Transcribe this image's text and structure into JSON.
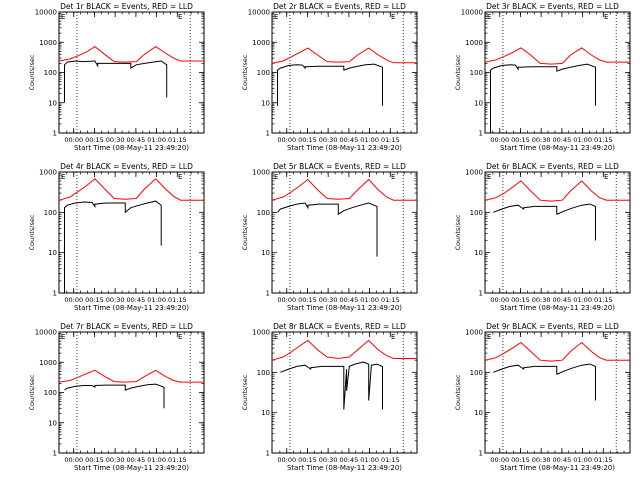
{
  "chart_data": [
    {
      "type": "line",
      "title": "Det 1r BLACK = Events, RED = LLD",
      "xlabel": "Start Time (08-May-11 23:49:20)",
      "ylabel": "Counts/sec",
      "ylog": true,
      "ylim": [
        1,
        10000
      ],
      "y_ticks": [
        "1",
        "10",
        "100",
        "1000",
        "10000"
      ],
      "x_ticks": [
        "00:00",
        "00:15",
        "00:30",
        "00:45",
        "01:00",
        "01:15"
      ],
      "x_tick_minutes": [
        10.67,
        25.67,
        40.67,
        55.67,
        70.67,
        85.67
      ],
      "xlim": [
        0,
        105
      ],
      "corner_marks": [
        "E",
        "E"
      ],
      "vlines": [
        13,
        95
      ],
      "series": [
        {
          "color": "#ff0000",
          "x": [
            0,
            8,
            14,
            20,
            26,
            33,
            40,
            48,
            56,
            62,
            70,
            77,
            83,
            88,
            95,
            100,
            105
          ],
          "y": [
            240,
            280,
            360,
            480,
            720,
            400,
            230,
            220,
            230,
            400,
            720,
            440,
            300,
            240,
            240,
            240,
            240
          ]
        },
        {
          "color": "#000000",
          "x": [
            4,
            4,
            6,
            12,
            18,
            26,
            28,
            28,
            36,
            46,
            52,
            52,
            56,
            62,
            68,
            74,
            78,
            78,
            78
          ],
          "y": [
            10,
            180,
            220,
            240,
            230,
            240,
            165,
            200,
            200,
            200,
            200,
            140,
            180,
            200,
            220,
            240,
            180,
            30,
            15
          ]
        }
      ]
    },
    {
      "type": "line",
      "title": "Det 2r BLACK = Events, RED = LLD",
      "xlabel": "Start Time (08-May-11 23:49:20)",
      "ylabel": "Counts/sec",
      "ylog": true,
      "ylim": [
        1,
        10000
      ],
      "y_ticks": [
        "1",
        "10",
        "100",
        "1000",
        "10000"
      ],
      "x_ticks": [
        "00:00",
        "00:15",
        "00:30",
        "00:45",
        "01:00",
        "01:15"
      ],
      "x_tick_minutes": [
        10.67,
        25.67,
        40.67,
        55.67,
        70.67,
        85.67
      ],
      "xlim": [
        0,
        105
      ],
      "corner_marks": [
        "E",
        "E"
      ],
      "vlines": [
        13,
        95
      ],
      "series": [
        {
          "color": "#ff0000",
          "x": [
            0,
            8,
            14,
            20,
            26,
            33,
            40,
            48,
            56,
            62,
            70,
            77,
            83,
            88,
            95,
            100,
            105
          ],
          "y": [
            200,
            240,
            330,
            460,
            640,
            380,
            230,
            220,
            230,
            380,
            640,
            380,
            260,
            210,
            210,
            210,
            210
          ]
        },
        {
          "color": "#000000",
          "x": [
            4,
            4,
            6,
            12,
            18,
            22,
            24,
            24,
            34,
            46,
            52,
            52,
            56,
            62,
            68,
            74,
            80,
            80,
            80
          ],
          "y": [
            8,
            120,
            140,
            170,
            180,
            175,
            140,
            155,
            160,
            160,
            160,
            120,
            140,
            160,
            180,
            190,
            150,
            20,
            8
          ]
        }
      ]
    },
    {
      "type": "line",
      "title": "Det 3r BLACK = Events, RED = LLD",
      "xlabel": "Start Time (08-May-11 23:49:20)",
      "ylabel": "Counts/sec",
      "ylog": true,
      "ylim": [
        1,
        10000
      ],
      "y_ticks": [
        "1",
        "10",
        "100",
        "1000",
        "10000"
      ],
      "x_ticks": [
        "00:00",
        "00:15",
        "00:30",
        "00:45",
        "01:00",
        "01:15"
      ],
      "x_tick_minutes": [
        10.67,
        25.67,
        40.67,
        55.67,
        70.67,
        85.67
      ],
      "xlim": [
        0,
        105
      ],
      "corner_marks": [
        "E",
        "E"
      ],
      "vlines": [
        13,
        95
      ],
      "series": [
        {
          "color": "#ff0000",
          "x": [
            0,
            8,
            14,
            20,
            26,
            33,
            40,
            48,
            56,
            62,
            70,
            77,
            83,
            88,
            95,
            100,
            105
          ],
          "y": [
            220,
            260,
            340,
            460,
            650,
            380,
            200,
            190,
            200,
            380,
            650,
            380,
            260,
            220,
            220,
            220,
            220
          ]
        },
        {
          "color": "#000000",
          "x": [
            4,
            4,
            6,
            12,
            18,
            22,
            24,
            24,
            34,
            46,
            52,
            52,
            56,
            62,
            68,
            74,
            80,
            80,
            80
          ],
          "y": [
            1,
            120,
            140,
            170,
            180,
            175,
            130,
            150,
            155,
            155,
            155,
            110,
            130,
            150,
            170,
            190,
            150,
            12,
            8
          ]
        }
      ]
    },
    {
      "type": "line",
      "title": "Det 4r BLACK = Events, RED = LLD",
      "xlabel": "Start Time (08-May-11 23:49:20)",
      "ylabel": "Counts/sec",
      "ylog": true,
      "ylim": [
        1,
        1000
      ],
      "y_ticks": [
        "1",
        "10",
        "100",
        "1000"
      ],
      "x_ticks": [
        "00:00",
        "00:15",
        "00:30",
        "00:45",
        "01:00",
        "01:15"
      ],
      "x_tick_minutes": [
        10.67,
        25.67,
        40.67,
        55.67,
        70.67,
        85.67
      ],
      "xlim": [
        0,
        105
      ],
      "corner_marks": [
        "E",
        "E"
      ],
      "vlines": [
        13,
        95
      ],
      "series": [
        {
          "color": "#ff0000",
          "x": [
            0,
            8,
            14,
            20,
            26,
            33,
            40,
            48,
            56,
            62,
            70,
            77,
            83,
            88,
            95,
            100,
            105
          ],
          "y": [
            200,
            240,
            330,
            460,
            680,
            380,
            220,
            210,
            220,
            380,
            680,
            380,
            250,
            200,
            200,
            200,
            200
          ]
        },
        {
          "color": "#000000",
          "x": [
            4,
            4,
            6,
            12,
            18,
            24,
            26,
            26,
            34,
            44,
            48,
            48,
            52,
            58,
            64,
            70,
            74,
            74,
            74
          ],
          "y": [
            1,
            130,
            150,
            170,
            180,
            175,
            140,
            160,
            170,
            170,
            170,
            100,
            130,
            150,
            170,
            190,
            150,
            40,
            15
          ]
        }
      ]
    },
    {
      "type": "line",
      "title": "Det 5r BLACK = Events, RED = LLD",
      "xlabel": "Start Time (08-May-11 23:49:20)",
      "ylabel": "Counts/sec",
      "ylog": true,
      "ylim": [
        1,
        1000
      ],
      "y_ticks": [
        "1",
        "10",
        "100",
        "1000"
      ],
      "x_ticks": [
        "00:00",
        "00:15",
        "00:30",
        "00:45",
        "01:00",
        "01:15"
      ],
      "x_tick_minutes": [
        10.67,
        25.67,
        40.67,
        55.67,
        70.67,
        85.67
      ],
      "xlim": [
        0,
        105
      ],
      "corner_marks": [
        "E",
        "E"
      ],
      "vlines": [
        13,
        95
      ],
      "series": [
        {
          "color": "#ff0000",
          "x": [
            0,
            8,
            14,
            20,
            26,
            33,
            40,
            48,
            56,
            62,
            70,
            77,
            83,
            88,
            95,
            100,
            105
          ],
          "y": [
            200,
            240,
            320,
            450,
            650,
            360,
            220,
            210,
            220,
            360,
            650,
            360,
            240,
            200,
            200,
            200,
            200
          ]
        },
        {
          "color": "#000000",
          "x": [
            4,
            4,
            6,
            12,
            18,
            24,
            26,
            26,
            34,
            44,
            48,
            48,
            52,
            58,
            64,
            70,
            76,
            76,
            76
          ],
          "y": [
            100,
            100,
            120,
            140,
            160,
            170,
            130,
            150,
            160,
            160,
            160,
            90,
            110,
            130,
            150,
            170,
            140,
            20,
            8
          ]
        }
      ]
    },
    {
      "type": "line",
      "title": "Det 6r BLACK = Events, RED = LLD",
      "xlabel": "Start Time (08-May-11 23:49:20)",
      "ylabel": "Counts/sec",
      "ylog": true,
      "ylim": [
        1,
        1000
      ],
      "y_ticks": [
        "1",
        "10",
        "100",
        "1000"
      ],
      "x_ticks": [
        "00:00",
        "00:15",
        "00:30",
        "00:45",
        "01:00",
        "01:15"
      ],
      "x_tick_minutes": [
        10.67,
        25.67,
        40.67,
        55.67,
        70.67,
        85.67
      ],
      "xlim": [
        0,
        105
      ],
      "corner_marks": [
        "E",
        "E"
      ],
      "vlines": [
        13,
        95
      ],
      "series": [
        {
          "color": "#ff0000",
          "x": [
            0,
            8,
            14,
            20,
            26,
            33,
            40,
            48,
            56,
            62,
            70,
            77,
            83,
            88,
            95,
            100,
            105
          ],
          "y": [
            200,
            230,
            300,
            420,
            600,
            340,
            200,
            190,
            200,
            340,
            600,
            340,
            230,
            200,
            200,
            200,
            200
          ]
        },
        {
          "color": "#000000",
          "x": [
            6,
            6,
            12,
            18,
            24,
            28,
            28,
            36,
            46,
            52,
            52,
            58,
            64,
            70,
            76,
            80,
            80,
            80
          ],
          "y": [
            100,
            100,
            120,
            140,
            150,
            120,
            130,
            140,
            140,
            140,
            90,
            110,
            130,
            150,
            160,
            140,
            40,
            20
          ]
        }
      ]
    },
    {
      "type": "line",
      "title": "Det 7r BLACK = Events, RED = LLD",
      "xlabel": "Start Time (08-May-11 23:49:20)",
      "ylabel": "Counts/sec",
      "ylog": true,
      "ylim": [
        1,
        10000
      ],
      "y_ticks": [
        "1",
        "10",
        "100",
        "1000",
        "10000"
      ],
      "x_ticks": [
        "00:00",
        "00:15",
        "00:30",
        "00:45",
        "01:00",
        "01:15"
      ],
      "x_tick_minutes": [
        10.67,
        25.67,
        40.67,
        55.67,
        70.67,
        85.67
      ],
      "xlim": [
        0,
        105
      ],
      "corner_marks": [
        "E",
        "E"
      ],
      "vlines": [
        13,
        95
      ],
      "series": [
        {
          "color": "#ff0000",
          "x": [
            0,
            8,
            14,
            20,
            26,
            33,
            40,
            48,
            56,
            62,
            70,
            77,
            83,
            88,
            95,
            100,
            105
          ],
          "y": [
            220,
            250,
            320,
            420,
            540,
            340,
            230,
            220,
            230,
            340,
            540,
            340,
            250,
            220,
            220,
            220,
            220
          ]
        },
        {
          "color": "#000000",
          "x": [
            4,
            4,
            6,
            12,
            18,
            24,
            26,
            26,
            34,
            44,
            48,
            48,
            52,
            58,
            64,
            70,
            76,
            76,
            76
          ],
          "y": [
            120,
            120,
            140,
            160,
            170,
            170,
            150,
            170,
            175,
            175,
            175,
            120,
            140,
            160,
            180,
            190,
            150,
            60,
            30
          ]
        }
      ]
    },
    {
      "type": "line",
      "title": "Det 8r BLACK = Events, RED = LLD",
      "xlabel": "Start Time (08-May-11 23:49:20)",
      "ylabel": "Counts/sec",
      "ylog": true,
      "ylim": [
        1,
        1000
      ],
      "y_ticks": [
        "1",
        "10",
        "100",
        "1000"
      ],
      "x_ticks": [
        "00:00",
        "00:15",
        "00:30",
        "00:45",
        "01:00",
        "01:15"
      ],
      "x_tick_minutes": [
        10.67,
        25.67,
        40.67,
        55.67,
        70.67,
        85.67
      ],
      "xlim": [
        0,
        105
      ],
      "corner_marks": [
        "E",
        "E"
      ],
      "vlines": [
        13,
        95
      ],
      "series": [
        {
          "color": "#ff0000",
          "x": [
            0,
            8,
            14,
            20,
            26,
            33,
            40,
            48,
            56,
            62,
            70,
            77,
            83,
            88,
            95,
            100,
            105
          ],
          "y": [
            200,
            240,
            320,
            450,
            620,
            360,
            240,
            220,
            240,
            360,
            620,
            360,
            260,
            220,
            220,
            220,
            220
          ]
        },
        {
          "color": "#000000",
          "x": [
            6,
            6,
            12,
            18,
            24,
            28,
            28,
            36,
            46,
            52,
            52,
            54,
            54,
            56,
            60,
            66,
            70,
            70,
            72,
            76,
            80,
            80
          ],
          "y": [
            100,
            100,
            120,
            140,
            150,
            120,
            130,
            140,
            140,
            140,
            12,
            120,
            35,
            140,
            160,
            180,
            160,
            20,
            150,
            160,
            140,
            12
          ]
        }
      ]
    },
    {
      "type": "line",
      "title": "Det 9r BLACK = Events, RED = LLD",
      "xlabel": "Start Time (08-May-11 23:49:20)",
      "ylabel": "Counts/sec",
      "ylog": true,
      "ylim": [
        1,
        1000
      ],
      "y_ticks": [
        "1",
        "10",
        "100",
        "1000"
      ],
      "x_ticks": [
        "00:00",
        "00:15",
        "00:30",
        "00:45",
        "01:00",
        "01:15"
      ],
      "x_tick_minutes": [
        10.67,
        25.67,
        40.67,
        55.67,
        70.67,
        85.67
      ],
      "xlim": [
        0,
        105
      ],
      "corner_marks": [
        "E",
        "E"
      ],
      "vlines": [
        13,
        95
      ],
      "series": [
        {
          "color": "#ff0000",
          "x": [
            0,
            8,
            14,
            20,
            26,
            33,
            40,
            48,
            56,
            62,
            70,
            77,
            83,
            88,
            95,
            100,
            105
          ],
          "y": [
            200,
            230,
            300,
            400,
            550,
            330,
            200,
            190,
            200,
            330,
            550,
            330,
            230,
            200,
            200,
            200,
            200
          ]
        },
        {
          "color": "#000000",
          "x": [
            6,
            6,
            12,
            18,
            24,
            28,
            28,
            36,
            46,
            52,
            52,
            58,
            64,
            70,
            76,
            80,
            80,
            80
          ],
          "y": [
            100,
            100,
            120,
            140,
            150,
            120,
            130,
            140,
            140,
            140,
            90,
            110,
            130,
            150,
            160,
            140,
            40,
            20
          ]
        }
      ]
    }
  ]
}
